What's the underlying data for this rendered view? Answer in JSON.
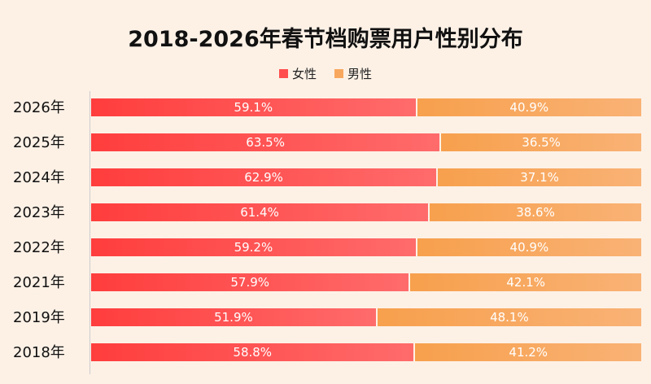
{
  "chart_data": {
    "type": "bar",
    "orientation": "horizontal",
    "stacked": true,
    "percent": true,
    "title": "2018-2026年春节档购票用户性别分布",
    "legend_position": "top",
    "categories": [
      "2026年",
      "2025年",
      "2024年",
      "2023年",
      "2022年",
      "2021年",
      "2019年",
      "2018年"
    ],
    "series": [
      {
        "name": "女性",
        "color": "#ff4d4d",
        "values": [
          59.1,
          63.5,
          62.9,
          61.4,
          59.2,
          57.9,
          51.9,
          58.8
        ]
      },
      {
        "name": "男性",
        "color": "#f8a75e",
        "values": [
          40.9,
          36.5,
          37.1,
          38.6,
          40.9,
          42.1,
          48.1,
          41.2
        ]
      }
    ],
    "xlim": [
      0,
      100
    ],
    "grid": false
  }
}
